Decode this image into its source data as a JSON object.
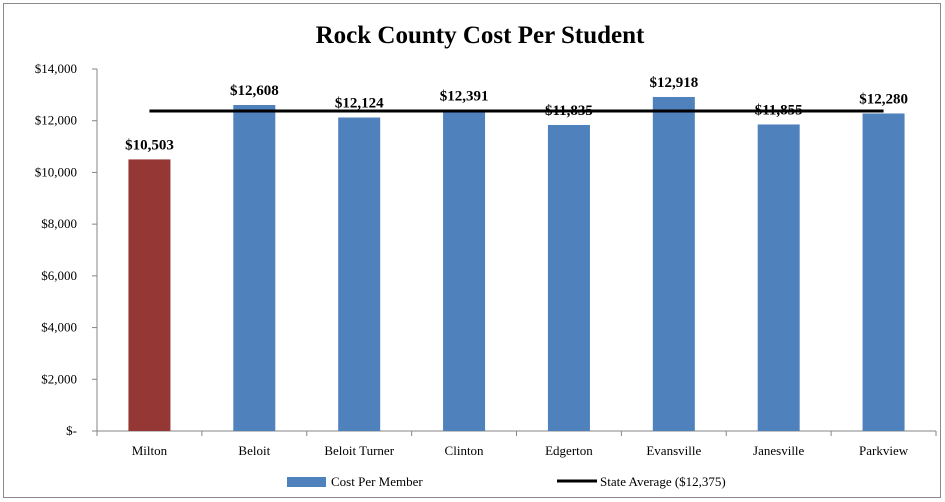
{
  "chart_data": {
    "type": "bar",
    "title": "Rock County Cost Per Student",
    "categories": [
      "Milton",
      "Beloit",
      "Beloit Turner",
      "Clinton",
      "Edgerton",
      "Evansville",
      "Janesville",
      "Parkview"
    ],
    "series": [
      {
        "name": "Cost Per Member",
        "values": [
          10503,
          12608,
          12124,
          12391,
          11835,
          12918,
          11855,
          12280
        ],
        "labels": [
          "$10,503",
          "$12,608",
          "$12,124",
          "$12,391",
          "$11,835",
          "$12,918",
          "$11,855",
          "$12,280"
        ],
        "color": "#4f81bd",
        "highlight_index": 0,
        "highlight_color": "#953735"
      },
      {
        "name": "State Average ($12,375)",
        "type": "line",
        "value": 12375,
        "color": "#000000"
      }
    ],
    "ylim": [
      0,
      14000
    ],
    "yticks": [
      0,
      2000,
      4000,
      6000,
      8000,
      10000,
      12000,
      14000
    ],
    "ytick_labels": [
      "$-",
      "$2,000",
      "$4,000",
      "$6,000",
      "$8,000",
      "$10,000",
      "$12,000",
      "$14,000"
    ],
    "legend": "bottom",
    "grid": false
  }
}
